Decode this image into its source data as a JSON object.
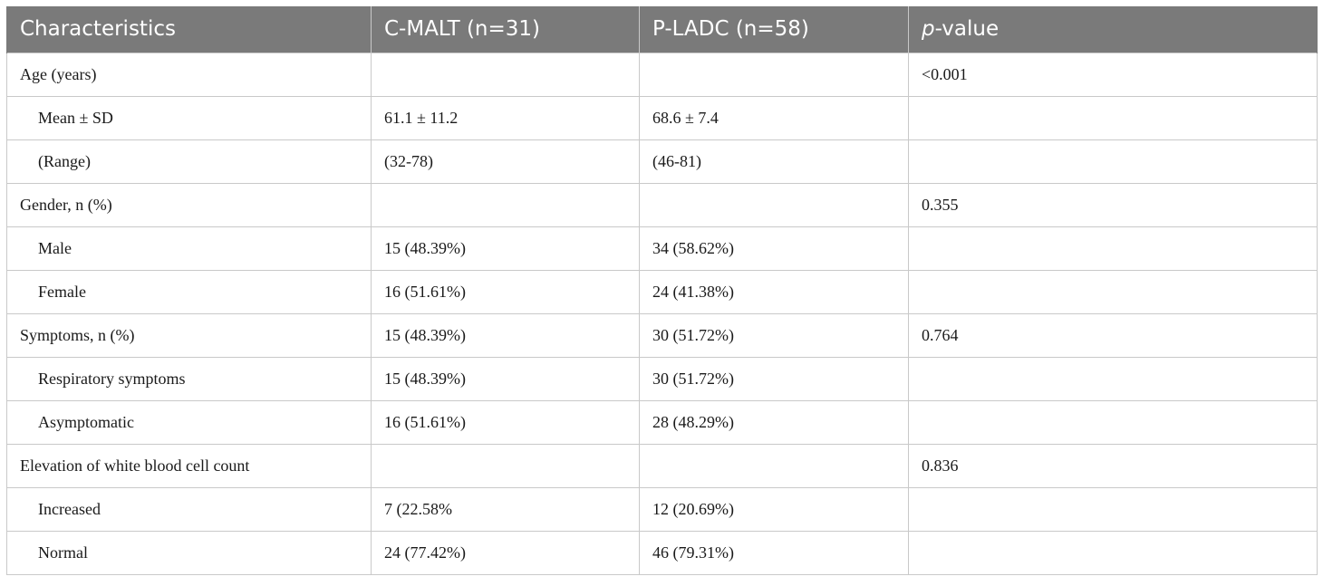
{
  "table": {
    "headers": {
      "characteristics": "Characteristics",
      "cmalt": "C-MALT (n=31)",
      "pladc": "P-LADC (n=58)",
      "pvalue_italic": "p",
      "pvalue_rest": "-value"
    },
    "rows": [
      {
        "label": "Age (years)",
        "indent": false,
        "cmalt": "",
        "pladc": "",
        "pvalue": "<0.001"
      },
      {
        "label": "Mean ± SD",
        "indent": true,
        "cmalt": "61.1 ± 11.2",
        "pladc": "68.6 ± 7.4",
        "pvalue": ""
      },
      {
        "label": "(Range)",
        "indent": true,
        "cmalt": "(32-78)",
        "pladc": "(46-81)",
        "pvalue": ""
      },
      {
        "label": "Gender, n (%)",
        "indent": false,
        "cmalt": "",
        "pladc": "",
        "pvalue": "0.355"
      },
      {
        "label": "Male",
        "indent": true,
        "cmalt": "15 (48.39%)",
        "pladc": "34 (58.62%)",
        "pvalue": ""
      },
      {
        "label": "Female",
        "indent": true,
        "cmalt": "16 (51.61%)",
        "pladc": "24 (41.38%)",
        "pvalue": ""
      },
      {
        "label": "Symptoms, n (%)",
        "indent": false,
        "cmalt": "15 (48.39%)",
        "pladc": "30 (51.72%)",
        "pvalue": "0.764"
      },
      {
        "label": "Respiratory symptoms",
        "indent": true,
        "cmalt": "15 (48.39%)",
        "pladc": "30 (51.72%)",
        "pvalue": ""
      },
      {
        "label": "Asymptomatic",
        "indent": true,
        "cmalt": "16 (51.61%)",
        "pladc": "28 (48.29%)",
        "pvalue": ""
      },
      {
        "label": "Elevation of white blood cell count",
        "indent": false,
        "cmalt": "",
        "pladc": "",
        "pvalue": "0.836"
      },
      {
        "label": "Increased",
        "indent": true,
        "cmalt": "7 (22.58%",
        "pladc": "12 (20.69%)",
        "pvalue": ""
      },
      {
        "label": "Normal",
        "indent": true,
        "cmalt": "24 (77.42%)",
        "pladc": "46 (79.31%)",
        "pvalue": ""
      }
    ]
  }
}
